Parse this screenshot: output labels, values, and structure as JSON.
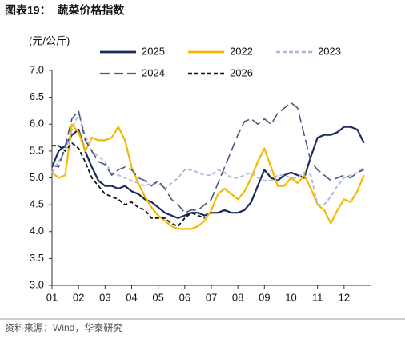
{
  "chart_data": {
    "type": "line",
    "title": "图表19：  蔬菜价格指数",
    "y_label": "(元/公斤)",
    "source": "资料来源：Wind，华泰研究",
    "legend": "top",
    "x": [
      1,
      1.25,
      1.5,
      1.75,
      2,
      2.25,
      2.5,
      2.75,
      3,
      3.25,
      3.5,
      3.75,
      4,
      4.25,
      4.5,
      4.75,
      5,
      5.25,
      5.5,
      5.75,
      6,
      6.25,
      6.5,
      6.75,
      7,
      7.25,
      7.5,
      7.75,
      8,
      8.25,
      8.5,
      8.75,
      9,
      9.25,
      9.5,
      9.75,
      10,
      10.25,
      10.5,
      10.75,
      11,
      11.25,
      11.5,
      11.75,
      12,
      12.25,
      12.5,
      12.75
    ],
    "xlim": [
      1,
      13
    ],
    "xticks": [
      {
        "value": 1,
        "label": "01"
      },
      {
        "value": 2,
        "label": "02"
      },
      {
        "value": 3,
        "label": "03"
      },
      {
        "value": 4,
        "label": "04"
      },
      {
        "value": 5,
        "label": "05"
      },
      {
        "value": 6,
        "label": "06"
      },
      {
        "value": 7,
        "label": "07"
      },
      {
        "value": 8,
        "label": "08"
      },
      {
        "value": 9,
        "label": "09"
      },
      {
        "value": 10,
        "label": "10"
      },
      {
        "value": 11,
        "label": "11"
      },
      {
        "value": 12,
        "label": "12"
      }
    ],
    "ylim": [
      3,
      7
    ],
    "yticks": [
      {
        "value": 3,
        "label": "3.0"
      },
      3.5,
      {
        "value": 4,
        "label": "4.0"
      },
      4.5,
      {
        "value": 5,
        "label": "5.0"
      },
      5.5,
      {
        "value": 6,
        "label": "6.0"
      },
      6.5,
      {
        "value": 7,
        "label": "7.0"
      }
    ],
    "series": [
      {
        "name": "2025",
        "color": "#1c2a5c",
        "line_style": "solid",
        "values": [
          5.2,
          5.5,
          5.6,
          5.8,
          5.9,
          5.5,
          5.2,
          4.95,
          4.85,
          4.85,
          4.8,
          4.85,
          4.75,
          4.7,
          4.6,
          4.55,
          4.45,
          4.35,
          4.3,
          4.25,
          4.3,
          4.35,
          4.35,
          4.3,
          4.35,
          4.35,
          4.4,
          4.35,
          4.35,
          4.4,
          4.55,
          4.85,
          5.15,
          5.0,
          4.95,
          5.05,
          5.1,
          5.05,
          5.0,
          5.4,
          5.75,
          5.8,
          5.8,
          5.85,
          5.95,
          5.95,
          5.9,
          5.65
        ]
      },
      {
        "name": "2022",
        "color": "#f5b800",
        "line_style": "solid",
        "values": [
          5.1,
          5.0,
          5.05,
          6.0,
          5.85,
          5.5,
          5.75,
          5.7,
          5.7,
          5.75,
          5.95,
          5.7,
          5.2,
          4.9,
          4.65,
          4.45,
          4.3,
          4.2,
          4.1,
          4.05,
          4.05,
          4.05,
          4.1,
          4.2,
          4.4,
          4.7,
          4.8,
          4.7,
          4.6,
          4.75,
          5.0,
          5.3,
          5.55,
          5.2,
          4.85,
          4.85,
          5.0,
          4.9,
          5.05,
          4.8,
          4.5,
          4.4,
          4.15,
          4.4,
          4.6,
          4.55,
          4.75,
          5.05
        ]
      },
      {
        "name": "2023",
        "color": "#a9b8e0",
        "line_style": "dashed",
        "values": [
          5.1,
          5.3,
          5.5,
          5.9,
          6.2,
          5.8,
          5.5,
          5.4,
          5.3,
          5.1,
          5.05,
          5.0,
          4.95,
          4.9,
          4.85,
          4.9,
          4.9,
          4.8,
          4.9,
          5.0,
          5.15,
          5.15,
          5.1,
          5.05,
          5.05,
          5.15,
          5.1,
          5.0,
          5.0,
          5.05,
          5.1,
          5.0,
          4.95,
          4.95,
          5.05,
          5.05,
          5.0,
          5.0,
          5.1,
          5.05,
          4.5,
          4.5,
          4.65,
          4.85,
          5.0,
          5.05,
          5.1,
          5.2
        ]
      },
      {
        "name": "2024",
        "color": "#4a5680",
        "line_style": "longdash",
        "values": [
          5.25,
          5.2,
          5.6,
          6.1,
          6.25,
          5.7,
          5.5,
          5.3,
          5.25,
          5.05,
          5.15,
          5.2,
          5.15,
          5.0,
          4.95,
          4.85,
          4.95,
          4.8,
          4.6,
          4.5,
          4.35,
          4.4,
          4.4,
          4.5,
          4.6,
          4.9,
          5.2,
          5.5,
          5.8,
          6.05,
          6.1,
          6.0,
          6.1,
          6.0,
          6.2,
          6.3,
          6.4,
          6.3,
          5.8,
          5.3,
          5.15,
          5.05,
          4.95,
          5.0,
          5.05,
          5.0,
          5.1,
          5.15
        ]
      },
      {
        "name": "2026",
        "color": "#111111",
        "line_style": "dashed",
        "values": [
          5.6,
          5.6,
          5.5,
          5.65,
          5.55,
          5.3,
          5.0,
          4.85,
          4.7,
          4.65,
          4.6,
          4.5,
          4.55,
          4.45,
          4.4,
          4.25,
          4.25,
          4.25,
          4.15,
          4.1,
          4.25,
          4.35,
          4.3,
          4.25,
          null,
          null,
          null,
          null,
          null,
          null,
          null,
          null,
          null,
          null,
          null,
          null,
          null,
          null,
          null,
          null,
          null,
          null,
          null,
          null,
          null,
          null,
          null,
          null
        ]
      }
    ]
  }
}
